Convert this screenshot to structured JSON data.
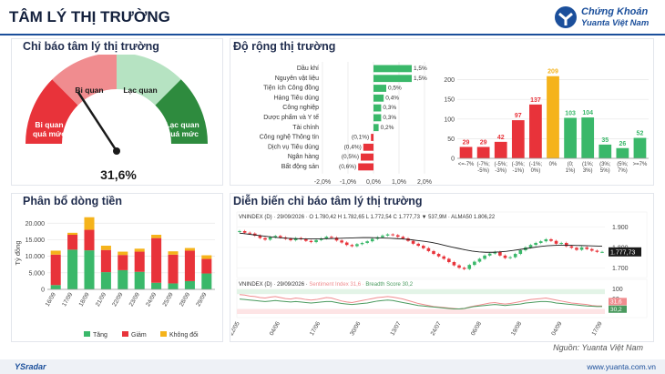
{
  "header": {
    "title": "TÂM LÝ THỊ TRƯỜNG",
    "brand_line1": "Chứng Khoán",
    "brand_line2": "Yuanta Việt Nam"
  },
  "sentiment_gauge": {
    "title": "Chỉ báo tâm lý thị trường",
    "value": 31.6,
    "value_label": "31,6%",
    "zones": [
      {
        "label": "Bi quan quá mức",
        "color": "#e8333a"
      },
      {
        "label": "Bi quan",
        "color": "#f08c8f"
      },
      {
        "label": "Lạc quan",
        "color": "#b6e3c2"
      },
      {
        "label": "Lạc quan quá mức",
        "color": "#2e8b3e"
      }
    ]
  },
  "breadth": {
    "title": "Độ rộng thị trường",
    "sectors_chart": {
      "type": "bar",
      "orientation": "horizontal",
      "categories": [
        "Dầu khí",
        "Nguyên vật liệu",
        "Tiện ích Công đồng",
        "Hàng Tiêu dùng",
        "Công nghiệp",
        "Dược phẩm và Y tế",
        "Tài chính",
        "Công nghệ Thông tin",
        "Dịch vụ Tiêu dùng",
        "Ngân hàng",
        "Bất động sản"
      ],
      "values": [
        1.5,
        1.5,
        0.5,
        0.4,
        0.3,
        0.3,
        0.2,
        -0.1,
        -0.4,
        -0.5,
        -0.6
      ],
      "value_labels": [
        "1,5%",
        "1,5%",
        "0,5%",
        "0,4%",
        "0,3%",
        "0,3%",
        "0,2%",
        "(0,1%)",
        "(0,4%)",
        "(0,5%)",
        "(0,6%)"
      ],
      "x_ticks": [
        "-2,0%",
        "-1,0%",
        "0,0%",
        "1,0%",
        "2,0%"
      ],
      "xlim": [
        -2,
        2
      ],
      "pos_color": "#3ab86a",
      "neg_color": "#e8333a"
    },
    "distribution_chart": {
      "type": "bar",
      "categories": [
        "<=-7%",
        "(-7%; -5%)",
        "(-5%; -3%)",
        "(-3%; -1%)",
        "(-1%; 0%)",
        "0%",
        "(0; 1%)",
        "(1%; 3%)",
        "(3%; 5%)",
        "(5%; 7%)",
        ">=7%"
      ],
      "tick_lines": [
        [
          "<=-7%"
        ],
        [
          "(-7%;",
          "-5%)"
        ],
        [
          "(-5%;",
          "-3%)"
        ],
        [
          "(-3%;",
          "-1%)"
        ],
        [
          "(-1%;",
          "0%)"
        ],
        [
          "0%"
        ],
        [
          "(0;",
          "1%)"
        ],
        [
          "(1%;",
          "3%)"
        ],
        [
          "(3%;",
          "5%)"
        ],
        [
          "(5%;",
          "7%)"
        ],
        [
          ">=7%"
        ]
      ],
      "values": [
        29,
        29,
        42,
        97,
        137,
        209,
        103,
        104,
        35,
        26,
        52
      ],
      "colors": [
        "#e8333a",
        "#e8333a",
        "#e8333a",
        "#e8333a",
        "#e8333a",
        "#f5b31b",
        "#3ab86a",
        "#3ab86a",
        "#3ab86a",
        "#3ab86a",
        "#3ab86a"
      ],
      "y_ticks": [
        0,
        50,
        100,
        150,
        200
      ],
      "ylim": [
        0,
        250
      ]
    }
  },
  "money_flow": {
    "title": "Phân bổ dòng tiền",
    "chart": {
      "type": "bar",
      "stacked": true,
      "ylabel": "Tỷ đồng",
      "ylim": [
        0,
        22000
      ],
      "y_ticks": [
        "0",
        "5.000",
        "10.000",
        "15.000",
        "20.000"
      ],
      "y_tick_values": [
        0,
        5000,
        10000,
        15000,
        20000
      ],
      "categories": [
        "16/09",
        "17/09",
        "18/09",
        "21/09",
        "22/09",
        "23/09",
        "24/09",
        "25/09",
        "28/09",
        "29/09"
      ],
      "series": [
        {
          "name": "Tăng",
          "color": "#3ab86a",
          "values": [
            1300,
            12000,
            11800,
            5200,
            5800,
            5300,
            2000,
            1800,
            2500,
            4800
          ]
        },
        {
          "name": "Giảm",
          "color": "#e8333a",
          "values": [
            9200,
            4500,
            6200,
            6700,
            4600,
            6100,
            13500,
            8700,
            9200,
            4400
          ]
        },
        {
          "name": "Không đổi",
          "color": "#f5b31b",
          "values": [
            1200,
            600,
            3800,
            1300,
            1000,
            900,
            1000,
            1000,
            800,
            1100
          ]
        }
      ]
    }
  },
  "sentiment_trend": {
    "title": "Diễn biến chỉ báo tâm lý thị trường",
    "top_chart": {
      "type": "line",
      "header": "VNINDEX (D) · 29/09/2026 · O 1.780,42 H 1.782,65 L 1.772,54 C 1.777,73 ▼ 537,9M · ALMA50 1.806,22",
      "y_ticks": [
        "1.900",
        "1.800",
        "1.700"
      ],
      "y_tick_values": [
        1900,
        1800,
        1700
      ],
      "ylim": [
        1670,
        1920
      ],
      "last_value_label": "1.777,73",
      "closes": [
        1880,
        1872,
        1868,
        1858,
        1846,
        1838,
        1850,
        1856,
        1849,
        1842,
        1835,
        1846,
        1840,
        1832,
        1826,
        1836,
        1844,
        1852,
        1848,
        1834,
        1824,
        1812,
        1806,
        1816,
        1822,
        1830,
        1842,
        1850,
        1858,
        1864,
        1860,
        1852,
        1844,
        1832,
        1818,
        1808,
        1796,
        1782,
        1768,
        1756,
        1744,
        1728,
        1712,
        1700,
        1694,
        1714,
        1730,
        1744,
        1760,
        1770,
        1778,
        1760,
        1748,
        1752,
        1768,
        1786,
        1800,
        1812,
        1822,
        1830,
        1840,
        1832,
        1818,
        1822,
        1806,
        1798,
        1788,
        1800,
        1792,
        1784,
        1778,
        1778
      ],
      "ma": [
        1870,
        1866,
        1862,
        1858,
        1854,
        1850,
        1847,
        1845,
        1843,
        1842,
        1842,
        1842,
        1842,
        1843,
        1844,
        1845,
        1846,
        1847,
        1848,
        1848,
        1847,
        1846,
        1845,
        1843,
        1841,
        1838,
        1834,
        1830,
        1825,
        1818,
        1810,
        1802,
        1795,
        1788,
        1782,
        1778,
        1776,
        1776,
        1778,
        1781,
        1785,
        1790,
        1795,
        1800,
        1805,
        1808,
        1810,
        1811,
        1811,
        1810,
        1809,
        1808,
        1807,
        1806
      ]
    },
    "bottom_chart": {
      "type": "line",
      "header_prefix": "VNINDEX (D) · 29/09/2026",
      "sentiment_label": "Sentiment Index 31,6",
      "breadth_label": "Breadth Score 30,2",
      "y_ticks": [
        "100",
        "60",
        "20"
      ],
      "y_tick_values": [
        100,
        60,
        20
      ],
      "ylim": [
        0,
        110
      ],
      "last_labels": [
        "31,6",
        "30,2"
      ],
      "sentiment": [
        78,
        76,
        72,
        70,
        66,
        64,
        68,
        70,
        66,
        62,
        60,
        64,
        62,
        58,
        56,
        58,
        62,
        66,
        64,
        58,
        52,
        48,
        46,
        50,
        54,
        58,
        62,
        66,
        68,
        70,
        68,
        64,
        60,
        54,
        48,
        42,
        38,
        34,
        30,
        28,
        26,
        24,
        22,
        20,
        22,
        28,
        32,
        36,
        40,
        44,
        46,
        42,
        40,
        42,
        46,
        50,
        54,
        58,
        60,
        62,
        64,
        60,
        56,
        52,
        48,
        44,
        42,
        40,
        38,
        34,
        32,
        32
      ],
      "breadth": [
        60,
        58,
        56,
        54,
        52,
        50,
        52,
        54,
        52,
        50,
        48,
        50,
        48,
        46,
        44,
        46,
        48,
        50,
        50,
        46,
        42,
        40,
        38,
        40,
        42,
        44,
        48,
        52,
        54,
        56,
        54,
        50,
        46,
        42,
        38,
        34,
        32,
        30,
        28,
        26,
        24,
        22,
        20,
        20,
        22,
        26,
        30,
        32,
        34,
        36,
        38,
        36,
        34,
        36,
        38,
        40,
        44,
        46,
        48,
        50,
        50,
        48,
        44,
        42,
        40,
        38,
        36,
        34,
        32,
        31,
        30,
        30
      ],
      "sentiment_color": "#f08c8f",
      "breadth_color": "#4a9a5e"
    },
    "x_ticks": [
      "22/05",
      "04/06",
      "17/06",
      "30/06",
      "13/07",
      "24/07",
      "06/08",
      "19/08",
      "04/09",
      "17/09"
    ],
    "source": "Nguồn: Yuanta Việt Nam"
  },
  "footer": {
    "logo": "YSradar",
    "website": "www.yuanta.com.vn"
  }
}
